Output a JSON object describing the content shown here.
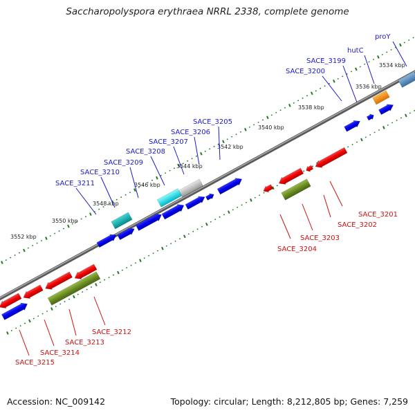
{
  "title": "Saccharopolyspora erythraea NRRL 2338, complete genome",
  "footer": {
    "accession": "Accession: NC_009142",
    "summary": "Topology: circular; Length: 8,212,805 bp; Genes: 7,259"
  },
  "colors": {
    "label_top": "#1a1acc",
    "label_bottom": "#cc1111",
    "backbone": "#888888",
    "tick": "#1e7a1e"
  },
  "ticks": [
    {
      "label": "3534 kbp",
      "bp": 3534000
    },
    {
      "label": "3536 kbp",
      "bp": 3536000
    },
    {
      "label": "3538 kbp",
      "bp": 3538000
    },
    {
      "label": "3540 kbp",
      "bp": 3540000
    },
    {
      "label": "3542 kbp",
      "bp": 3542000
    },
    {
      "label": "3544 kbp",
      "bp": 3544000
    },
    {
      "label": "3546 kbp",
      "bp": 3546000
    },
    {
      "label": "3548 kbp",
      "bp": 3548000
    },
    {
      "label": "3550 kbp",
      "bp": 3550000
    },
    {
      "label": "3552 kbp",
      "bp": 3552000
    }
  ],
  "genes_top": [
    {
      "label": "proY",
      "color": "steelblue"
    },
    {
      "label": "hutC",
      "color": "orange"
    },
    {
      "label": "SACE_3199",
      "color": "blue"
    },
    {
      "label": "SACE_3200",
      "color": "blue"
    },
    {
      "label": "SACE_3205",
      "color": "blue"
    },
    {
      "label": "SACE_3206",
      "color": "blue"
    },
    {
      "label": "SACE_3207",
      "color": "grey"
    },
    {
      "label": "SACE_3208",
      "color": "blue"
    },
    {
      "label": "SACE_3209",
      "color": "cyan"
    },
    {
      "label": "SACE_3210",
      "color": "blue"
    },
    {
      "label": "SACE_3211",
      "color": "teal"
    }
  ],
  "genes_bottom": [
    {
      "label": "SACE_3201",
      "color": "red"
    },
    {
      "label": "SACE_3202",
      "color": "red"
    },
    {
      "label": "SACE_3203",
      "color": "olive"
    },
    {
      "label": "SACE_3204",
      "color": "red"
    },
    {
      "label": "SACE_3212",
      "color": "olive"
    },
    {
      "label": "SACE_3213",
      "color": "red"
    },
    {
      "label": "SACE_3214",
      "color": "red"
    },
    {
      "label": "SACE_3215",
      "color": "blue"
    }
  ]
}
